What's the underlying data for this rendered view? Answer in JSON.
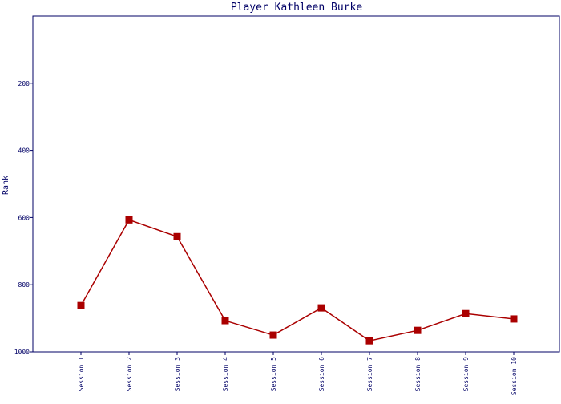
{
  "chart_data": {
    "type": "line",
    "title": "Player Kathleen Burke",
    "y_label": "Rank",
    "categories": [
      "Session 1",
      "Session 2",
      "Session 3",
      "Session 4",
      "Session 5",
      "Session 6",
      "Session 7",
      "Session 8",
      "Session 9",
      "Session 10"
    ],
    "series": [
      {
        "name": "Rank",
        "color": "#aa0000",
        "values": [
          862,
          607,
          657,
          907,
          950,
          869,
          967,
          936,
          886,
          902
        ]
      }
    ],
    "ylim": [
      1000,
      0
    ],
    "yticks": [
      200,
      400,
      600,
      800,
      1000
    ],
    "grid": false
  }
}
